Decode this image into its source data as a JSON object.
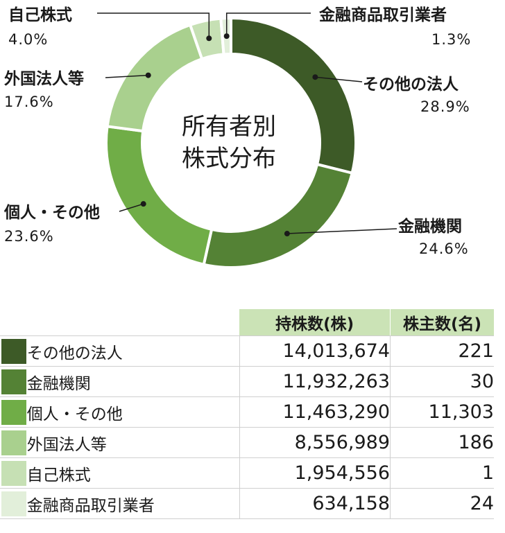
{
  "chart_data": {
    "type": "pie",
    "title": "所有者別\n株式分布",
    "title_lines": [
      "所有者別",
      "株式分布"
    ],
    "slices": [
      {
        "label": "その他の法人",
        "percent_label": "28.9%",
        "value": 28.9,
        "color": "#3d5a27"
      },
      {
        "label": "金融機関",
        "percent_label": "24.6%",
        "value": 24.6,
        "color": "#548235"
      },
      {
        "label": "個人・その他",
        "percent_label": "23.6%",
        "value": 23.6,
        "color": "#70ad47"
      },
      {
        "label": "外国法人等",
        "percent_label": "17.6%",
        "value": 17.6,
        "color": "#a9d08e"
      },
      {
        "label": "自己株式",
        "percent_label": "4.0%",
        "value": 4.0,
        "color": "#c6e0b4"
      },
      {
        "label": "金融商品取引業者",
        "percent_label": "1.3%",
        "value": 1.3,
        "color": "#e2efda"
      }
    ]
  },
  "table": {
    "headers": [
      "持株数(株)",
      "株主数(名)"
    ],
    "rows": [
      {
        "category": "その他の法人",
        "shares": "14,013,674",
        "holders": "221",
        "color": "#3d5a27"
      },
      {
        "category": "金融機関",
        "shares": "11,932,263",
        "holders": "30",
        "color": "#548235"
      },
      {
        "category": "個人・その他",
        "shares": "11,463,290",
        "holders": "11,303",
        "color": "#70ad47"
      },
      {
        "category": "外国法人等",
        "shares": "8,556,989",
        "holders": "186",
        "color": "#a9d08e"
      },
      {
        "category": "自己株式",
        "shares": "1,954,556",
        "holders": "1",
        "color": "#c6e0b4"
      },
      {
        "category": "金融商品取引業者",
        "shares": "634,158",
        "holders": "24",
        "color": "#e2efda"
      }
    ]
  }
}
